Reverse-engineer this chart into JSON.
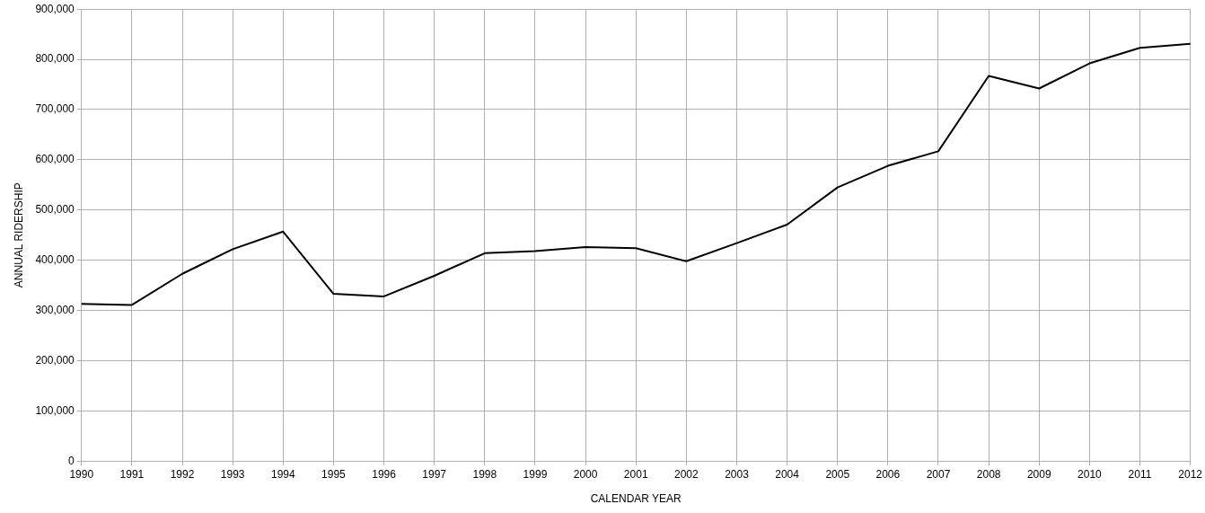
{
  "chart_data": {
    "type": "line",
    "xlabel": "CALENDAR YEAR",
    "ylabel": "ANNUAL RIDERSHIP",
    "categories": [
      "1990",
      "1991",
      "1992",
      "1993",
      "1994",
      "1995",
      "1996",
      "1997",
      "1998",
      "1999",
      "2000",
      "2001",
      "2002",
      "2003",
      "2004",
      "2005",
      "2006",
      "2007",
      "2008",
      "2009",
      "2010",
      "2011",
      "2012"
    ],
    "series": [
      {
        "color": "#000000",
        "values": [
          313000,
          311000,
          373000,
          422000,
          457000,
          333000,
          328000,
          369000,
          414000,
          418000,
          426000,
          424000,
          398000,
          434000,
          471000,
          545000,
          588000,
          617000,
          767000,
          742000,
          792000,
          823000,
          831000
        ]
      }
    ],
    "ylim": [
      0,
      900000
    ],
    "yticks": [
      {
        "value": 0,
        "label": "0"
      },
      {
        "value": 100000,
        "label": "100,000"
      },
      {
        "value": 200000,
        "label": "200,000"
      },
      {
        "value": 300000,
        "label": "300,000"
      },
      {
        "value": 400000,
        "label": "400,000"
      },
      {
        "value": 500000,
        "label": "500,000"
      },
      {
        "value": 600000,
        "label": "600,000"
      },
      {
        "value": 700000,
        "label": "700,000"
      },
      {
        "value": 800000,
        "label": "800,000"
      },
      {
        "value": 900000,
        "label": "900,000"
      }
    ],
    "grid": true,
    "legend": false,
    "marker": "none",
    "line_style": "solid"
  }
}
